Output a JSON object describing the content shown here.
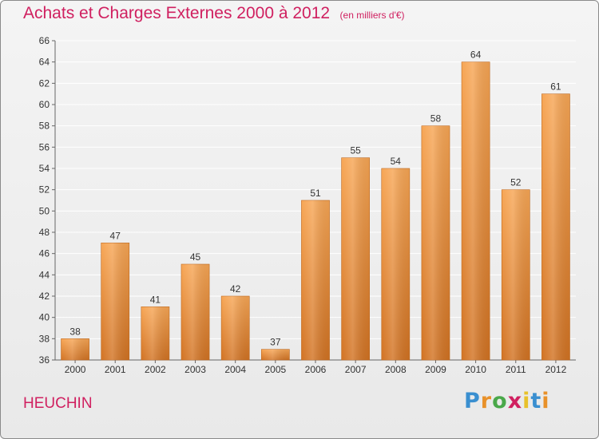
{
  "header": {
    "title": "Achats et Charges Externes 2000 à 2012",
    "unit": "(en milliers d'€)"
  },
  "footer": {
    "town": "HEUCHIN",
    "logo_text": "Proxiti",
    "logo_colors": [
      "#3a8fd0",
      "#e8912a",
      "#4aa84a",
      "#d02060",
      "#e8c12a",
      "#3a8fd0",
      "#e8912a"
    ]
  },
  "colors": {
    "title": "#d02060",
    "bar_top": "#f7a655",
    "bar_bottom": "#d27323",
    "grid": "#ffffff",
    "text": "#333333"
  },
  "chart_data": {
    "type": "bar",
    "title": "Achats et Charges Externes 2000 à 2012",
    "subtitle": "(en milliers d'€)",
    "categories": [
      "2000",
      "2001",
      "2002",
      "2003",
      "2004",
      "2005",
      "2006",
      "2007",
      "2008",
      "2009",
      "2010",
      "2011",
      "2012"
    ],
    "values": [
      38,
      47,
      41,
      45,
      42,
      37,
      51,
      55,
      54,
      58,
      64,
      52,
      61
    ],
    "ylim": [
      36,
      66
    ],
    "yticks": [
      36,
      38,
      40,
      42,
      44,
      46,
      48,
      50,
      52,
      54,
      56,
      58,
      60,
      62,
      64,
      66
    ],
    "grid": true,
    "data_labels": true,
    "xlabel": "",
    "ylabel": ""
  }
}
